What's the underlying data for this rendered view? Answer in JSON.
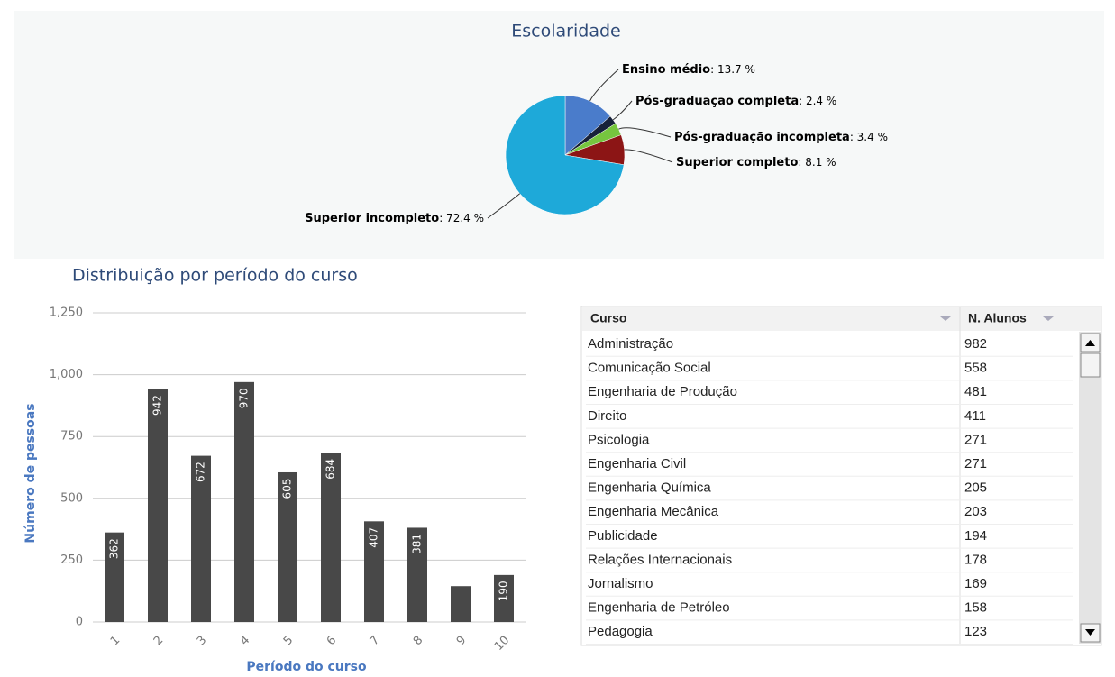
{
  "chart_data": [
    {
      "type": "pie",
      "title": "Escolaridade",
      "categories": [
        "Ensino médio",
        "Pós-graduação completa",
        "Pós-graduação incompleta",
        "Superior completo",
        "Superior incompleto"
      ],
      "values": [
        13.7,
        2.4,
        3.4,
        8.1,
        72.4
      ],
      "value_labels": [
        ": 13.7 %",
        ": 2.4 %",
        ": 3.4 %",
        ": 8.1 %",
        ": 72.4 %"
      ],
      "colors": [
        "#4a7ccb",
        "#17223a",
        "#76c63f",
        "#8c1515",
        "#1ea9d9"
      ]
    },
    {
      "type": "bar",
      "title": "Distribuição por período do curso",
      "x_label": "Período do curso",
      "y_label": "Número de pessoas",
      "categories": [
        "1",
        "2",
        "3",
        "4",
        "5",
        "6",
        "7",
        "8",
        "9",
        "10"
      ],
      "values": [
        362,
        942,
        672,
        970,
        605,
        684,
        407,
        381,
        145,
        190
      ],
      "value_labels": [
        "362",
        "942",
        "672",
        "970",
        "605",
        "684",
        "407",
        "381",
        null,
        "190"
      ],
      "color": "#484848",
      "ylim": [
        0,
        1250
      ],
      "yticks": [
        0,
        250,
        500,
        750,
        {
          "value": 1000,
          "label": "1,000"
        },
        {
          "value": 1250,
          "label": "1,250"
        }
      ],
      "grid": true
    }
  ],
  "table": {
    "columns": [
      "Curso",
      "N. Alunos"
    ],
    "rows": [
      [
        "Administração",
        982
      ],
      [
        "Comunicação Social",
        558
      ],
      [
        "Engenharia de Produção",
        481
      ],
      [
        "Direito",
        411
      ],
      [
        "Psicologia",
        271
      ],
      [
        "Engenharia Civil",
        271
      ],
      [
        "Engenharia Química",
        205
      ],
      [
        "Engenharia Mecânica",
        203
      ],
      [
        "Publicidade",
        194
      ],
      [
        "Relações Internacionais",
        178
      ],
      [
        "Jornalismo",
        169
      ],
      [
        "Engenharia de Petróleo",
        158
      ],
      [
        "Pedagogia",
        123
      ]
    ]
  }
}
